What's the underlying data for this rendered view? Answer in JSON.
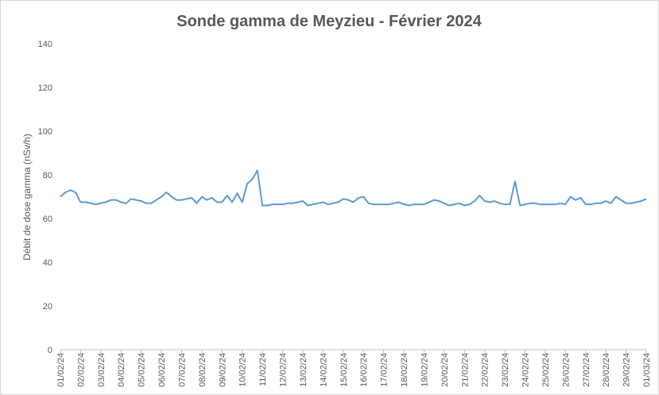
{
  "chart_data": {
    "type": "line",
    "title": "Sonde gamma de Meyzieu - Février 2024",
    "y_label": "Débit de dose gamma (nSv/h)",
    "categories": [
      "01/02/24",
      null,
      null,
      null,
      "02/02/24",
      null,
      null,
      null,
      "03/02/24",
      null,
      null,
      null,
      "04/02/24",
      null,
      null,
      null,
      "05/02/24",
      null,
      null,
      null,
      "06/02/24",
      null,
      null,
      null,
      "07/02/24",
      null,
      null,
      null,
      "08/02/24",
      null,
      null,
      null,
      "09/02/24",
      null,
      null,
      null,
      "10/02/24",
      null,
      null,
      null,
      "11/02/24",
      null,
      null,
      null,
      "12/02/24",
      null,
      null,
      null,
      "13/02/24",
      null,
      null,
      null,
      "14/02/24",
      null,
      null,
      null,
      "15/02/24",
      null,
      null,
      null,
      "16/02/24",
      null,
      null,
      null,
      "17/02/24",
      null,
      null,
      null,
      "18/02/24",
      null,
      null,
      null,
      "19/02/24",
      null,
      null,
      null,
      "20/02/24",
      null,
      null,
      null,
      "21/02/24",
      null,
      null,
      null,
      "22/02/24",
      null,
      null,
      null,
      "23/02/24",
      null,
      null,
      null,
      "24/02/24",
      null,
      null,
      null,
      "25/02/24",
      null,
      null,
      null,
      "26/02/24",
      null,
      null,
      null,
      "27/02/24",
      null,
      null,
      null,
      "28/02/24",
      null,
      null,
      null,
      "29/02/24",
      null,
      null,
      null,
      "01/03/24"
    ],
    "values": [
      70,
      72,
      73,
      72,
      67.5,
      67.5,
      67,
      66.5,
      67,
      67.5,
      68.5,
      68.5,
      67.5,
      67,
      69,
      68.5,
      68,
      67,
      67,
      68.5,
      70,
      72,
      70,
      68.5,
      68.5,
      69,
      69.5,
      67,
      70,
      68.5,
      69.5,
      67.5,
      67.5,
      70.5,
      67.5,
      71.5,
      67.5,
      76,
      78,
      82,
      66,
      66,
      66.5,
      66.5,
      66.5,
      67,
      67,
      67.5,
      68,
      66,
      66.5,
      67,
      67.5,
      66.5,
      67,
      67.5,
      69,
      68.5,
      67.5,
      69.5,
      70,
      67,
      66.5,
      66.5,
      66.5,
      66.5,
      67,
      67.5,
      66.5,
      66,
      66.5,
      66.5,
      66.5,
      67.5,
      68.5,
      68,
      67,
      66,
      66.5,
      67,
      66,
      66.5,
      68,
      70.5,
      68,
      67.5,
      68,
      67,
      66.5,
      66.5,
      77,
      66,
      66.5,
      67,
      67,
      66.5,
      66.5,
      66.5,
      66.5,
      67,
      66.5,
      70,
      68.5,
      69.5,
      66.5,
      66.5,
      67,
      67,
      68,
      67,
      70,
      68.5,
      67,
      67,
      67.5,
      68,
      69
    ],
    "color": "#5b9bd5",
    "ylim": [
      0,
      140
    ],
    "yticks": [
      0,
      20,
      40,
      60,
      80,
      100,
      120,
      140
    ],
    "grid": false
  }
}
